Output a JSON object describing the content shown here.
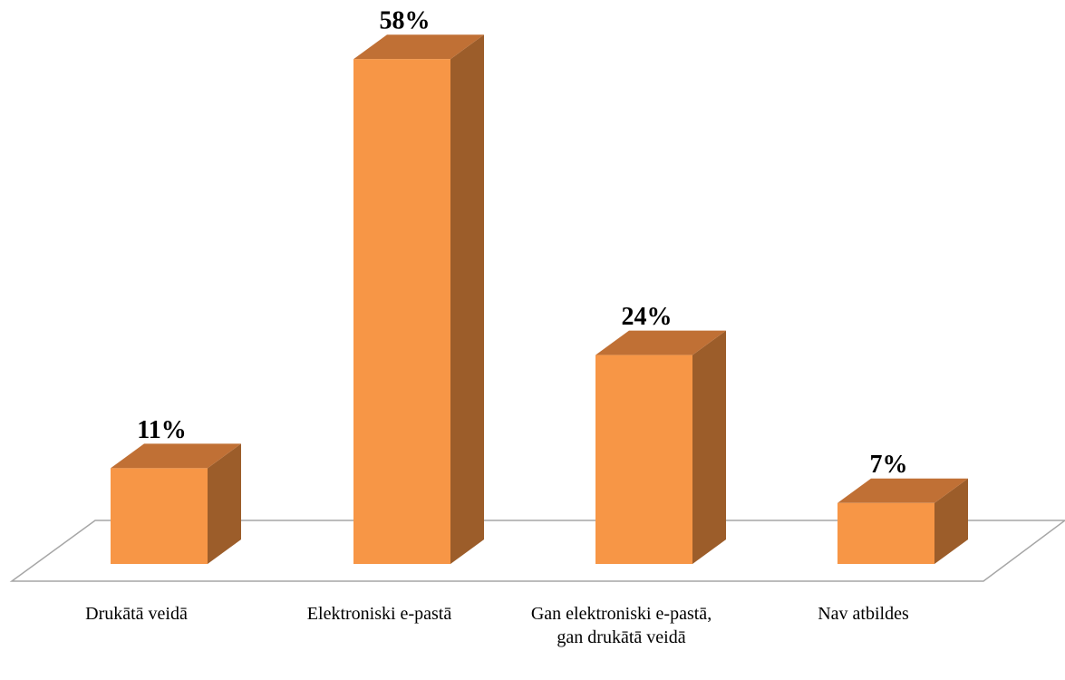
{
  "chart_data": {
    "type": "bar3d",
    "categories": [
      "Drukātā veidā",
      "Elektroniski e-pastā",
      "Gan elektroniski e-pastā, gan drukātā veidā",
      "Nav atbildes"
    ],
    "values": [
      11,
      58,
      24,
      7
    ],
    "value_labels": [
      "11%",
      "58%",
      "24%",
      "7%"
    ],
    "color": "#f79646"
  }
}
